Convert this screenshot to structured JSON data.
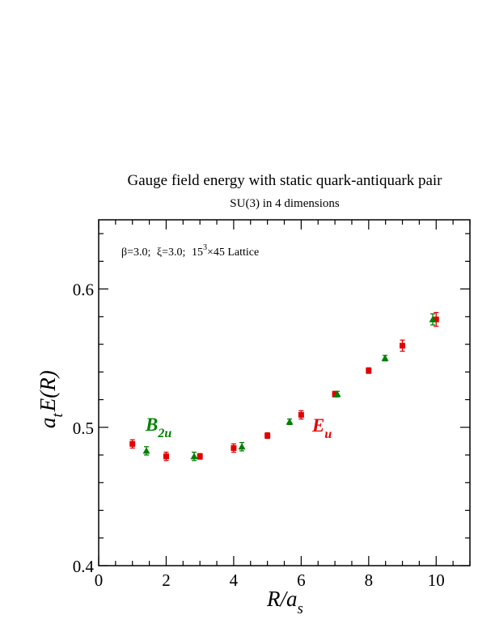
{
  "chart_data": {
    "type": "scatter",
    "title": "Gauge field energy with static quark-antiquark pair",
    "subtitle": "SU(3) in 4 dimensions",
    "annotation": {
      "beta": "β=3.0;",
      "xi": "ξ=3.0;",
      "lattice_base": "15",
      "lattice_exp": "3",
      "lattice_rest": "×45 Lattice"
    },
    "xlabel": {
      "main": "R/a",
      "sub": "s"
    },
    "ylabel": {
      "a": "a",
      "sub": "t",
      "rest": "E(R)"
    },
    "xlim": [
      0,
      11
    ],
    "ylim": [
      0.4,
      0.65
    ],
    "xticks": [
      0,
      2,
      4,
      6,
      8,
      10
    ],
    "xtick_labels": [
      "0",
      "2",
      "4",
      "6",
      "8",
      "10"
    ],
    "yticks": [
      0.4,
      0.5,
      0.6
    ],
    "ytick_labels": [
      "0.4",
      "0.5",
      "0.6"
    ],
    "grid": false,
    "series": [
      {
        "name": "E",
        "name_sub": "u",
        "color": "#e00000",
        "marker": "square",
        "x": [
          1,
          2,
          3,
          4,
          5,
          6,
          7,
          8,
          9,
          10
        ],
        "y": [
          0.488,
          0.479,
          0.479,
          0.485,
          0.494,
          0.509,
          0.524,
          0.541,
          0.559,
          0.578
        ],
        "err": [
          0.003,
          0.003,
          0.002,
          0.003,
          0.002,
          0.003,
          0.002,
          0.002,
          0.004,
          0.005
        ]
      },
      {
        "name": "B",
        "name_sub": "2u",
        "color": "#008000",
        "marker": "triangle",
        "x": [
          1.414,
          2.828,
          4.243,
          5.657,
          7.071,
          8.485,
          9.899
        ],
        "y": [
          0.483,
          0.479,
          0.486,
          0.504,
          0.524,
          0.55,
          0.578
        ],
        "err": [
          0.003,
          0.003,
          0.003,
          0.002,
          0.002,
          0.002,
          0.004
        ]
      }
    ]
  }
}
